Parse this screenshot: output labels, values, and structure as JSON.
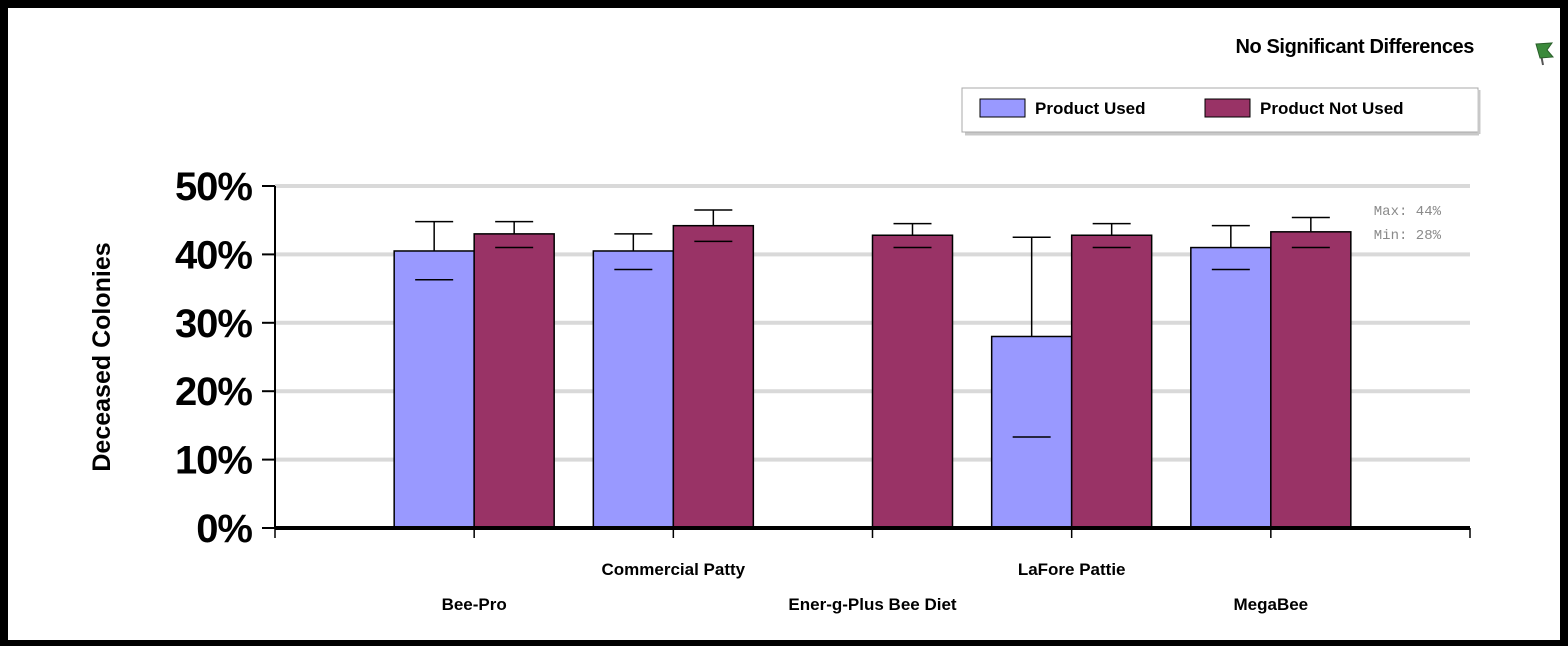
{
  "status": {
    "title": "No Significant Differences",
    "icon": "flag-icon"
  },
  "legend": {
    "items": [
      {
        "label": "Product Used",
        "color": "#9999ff"
      },
      {
        "label": "Product Not Used",
        "color": "#993366"
      }
    ]
  },
  "stats": {
    "max_label": "Max: 44%",
    "min_label": "Min: 28%"
  },
  "chart_data": {
    "type": "bar",
    "title": "No Significant Differences",
    "xlabel": "",
    "ylabel": "Deceased Colonies",
    "ylim": [
      0,
      50
    ],
    "y_ticks": [
      "0%",
      "10%",
      "20%",
      "30%",
      "40%",
      "50%"
    ],
    "categories": [
      "Bee-Pro",
      "Commercial Patty",
      "Ener-g-Plus Bee Diet",
      "LaFore Pattie",
      "MegaBee"
    ],
    "grid": true,
    "legend_position": "top-right",
    "series": [
      {
        "name": "Product Used",
        "color": "#9999ff",
        "values": [
          40.5,
          40.5,
          null,
          28,
          41
        ],
        "error_upper": [
          44.8,
          43.0,
          null,
          42.5,
          44.2
        ],
        "error_lower": [
          36.3,
          37.8,
          null,
          13.3,
          37.8
        ]
      },
      {
        "name": "Product Not Used",
        "color": "#993366",
        "values": [
          43,
          44.2,
          42.8,
          42.8,
          43.3
        ],
        "error_upper": [
          44.8,
          46.5,
          44.5,
          44.5,
          45.4
        ],
        "error_lower": [
          41.0,
          41.9,
          41.0,
          41.0,
          41.0
        ]
      }
    ]
  }
}
